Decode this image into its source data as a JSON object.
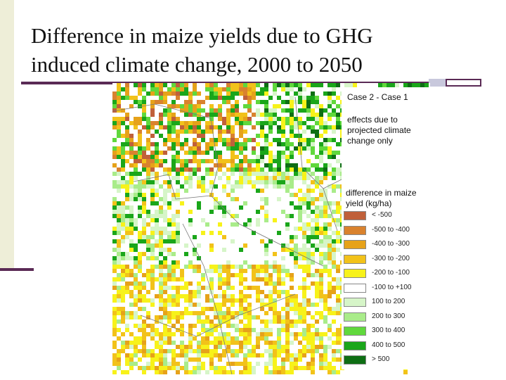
{
  "slide": {
    "title_line1": "Difference in maize yields due to GHG",
    "title_line2": "induced climate change, 2000 to 2050"
  },
  "legend": {
    "case": "Case 2 - Case 1",
    "description": "effects due to projected climate change only",
    "title": "difference in maize yield (kg/ha)",
    "items": [
      {
        "label": "< -500",
        "color": "#c0603a"
      },
      {
        "label": "-500 to -400",
        "color": "#d9822e"
      },
      {
        "label": "-400 to -300",
        "color": "#e6a21a"
      },
      {
        "label": "-300 to -200",
        "color": "#f2c21a"
      },
      {
        "label": "-200 to -100",
        "color": "#f7f21a"
      },
      {
        "label": "-100 to +100",
        "color": "#ffffff"
      },
      {
        "label": "100 to 200",
        "color": "#d6f5c8"
      },
      {
        "label": "200 to 300",
        "color": "#a9ec8a"
      },
      {
        "label": "300 to 400",
        "color": "#60d83c"
      },
      {
        "label": "400 to 500",
        "color": "#1aa61a"
      },
      {
        "label": "> 500",
        "color": "#0e6e14"
      }
    ]
  },
  "colors": {
    "accent": "#5a2a55",
    "side_bar": "#eeeed8"
  }
}
